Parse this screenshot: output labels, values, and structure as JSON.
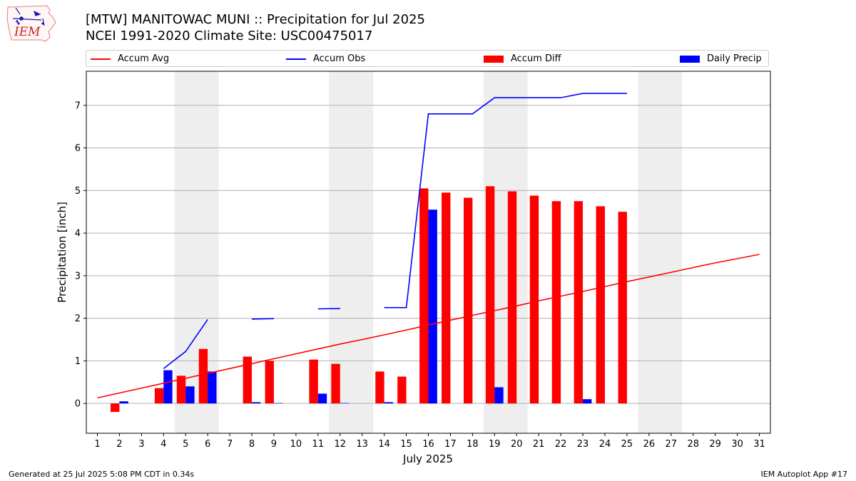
{
  "title_line1": "[MTW] MANITOWAC MUNI :: Precipitation for Jul 2025",
  "title_line2": "NCEI 1991-2020 Climate Site: USC00475017",
  "logo": {
    "text": "IEM",
    "icon": "iem-iowa-logo-icon"
  },
  "legend": {
    "placement": "top",
    "items": [
      {
        "label": "Accum Avg",
        "color": "#ff0000",
        "kind": "line"
      },
      {
        "label": "Accum Obs",
        "color": "#0000ff",
        "kind": "line"
      },
      {
        "label": "Accum Diff",
        "color": "#ff0000",
        "kind": "bar"
      },
      {
        "label": "Daily Precip",
        "color": "#0000ff",
        "kind": "bar"
      }
    ]
  },
  "footer_left": "Generated at 25 Jul 2025 5:08 PM CDT in 0.34s",
  "footer_right": "IEM Autoplot App #17",
  "chart_data": {
    "type": "bar",
    "xlabel": "July 2025",
    "ylabel": "Precipitation [inch]",
    "xlim": [
      0.5,
      31.5
    ],
    "ylim": [
      -0.7,
      7.8
    ],
    "yticks": [
      0,
      1,
      2,
      3,
      4,
      5,
      6,
      7
    ],
    "days": [
      1,
      2,
      3,
      4,
      5,
      6,
      7,
      8,
      9,
      10,
      11,
      12,
      13,
      14,
      15,
      16,
      17,
      18,
      19,
      20,
      21,
      22,
      23,
      24,
      25,
      26,
      27,
      28,
      29,
      30,
      31
    ],
    "grid": "y",
    "weekend_shading": [
      [
        4.5,
        6.5
      ],
      [
        11.5,
        13.5
      ],
      [
        18.5,
        20.5
      ],
      [
        25.5,
        27.5
      ]
    ],
    "series": [
      {
        "name": "Accum Avg",
        "type": "line",
        "color": "#ff0000",
        "values": [
          0.13,
          0.245,
          0.36,
          0.475,
          0.59,
          0.705,
          0.82,
          0.935,
          1.05,
          1.165,
          1.28,
          1.395,
          1.5,
          1.61,
          1.725,
          1.84,
          1.955,
          2.07,
          2.18,
          2.29,
          2.41,
          2.52,
          2.63,
          2.745,
          2.86,
          2.97,
          3.08,
          3.19,
          3.3,
          3.4,
          3.5
        ]
      },
      {
        "name": "Accum Obs",
        "type": "line",
        "color": "#0000ff",
        "values": [
          null,
          null,
          null,
          0.82,
          1.22,
          1.97,
          null,
          1.98,
          1.99,
          null,
          2.22,
          2.23,
          null,
          2.25,
          2.25,
          6.8,
          6.8,
          6.8,
          7.18,
          7.18,
          7.18,
          7.18,
          7.28,
          7.28,
          7.28,
          null,
          null,
          null,
          null,
          null,
          null
        ]
      },
      {
        "name": "Accum Diff",
        "type": "bar",
        "color": "#ff0000",
        "values": [
          null,
          -0.2,
          null,
          0.36,
          0.65,
          1.28,
          null,
          1.1,
          1.0,
          null,
          1.03,
          0.93,
          null,
          0.75,
          0.63,
          5.05,
          4.95,
          4.83,
          5.1,
          4.98,
          4.88,
          4.75,
          4.75,
          4.63,
          4.5,
          null,
          null,
          null,
          null,
          null,
          null
        ]
      },
      {
        "name": "Daily Precip",
        "type": "bar",
        "color": "#0000ff",
        "values": [
          null,
          0.05,
          null,
          0.78,
          0.4,
          0.75,
          null,
          0.03,
          0.01,
          null,
          0.23,
          0.01,
          null,
          0.03,
          null,
          4.55,
          null,
          null,
          0.38,
          null,
          null,
          null,
          0.1,
          null,
          null,
          null,
          null,
          null,
          null,
          null,
          null
        ]
      }
    ]
  }
}
